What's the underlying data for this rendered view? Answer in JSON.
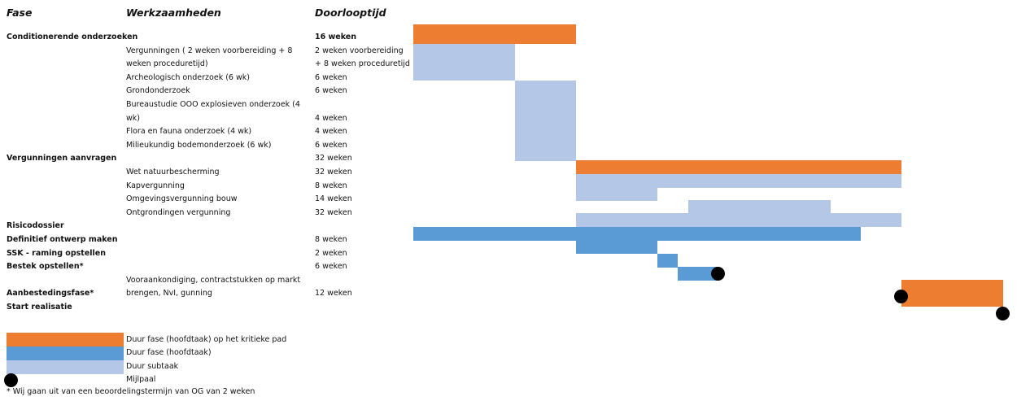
{
  "headers": {
    "phase": "Fase",
    "tasks": "Werkzaamheden",
    "duration": "Doorlooptijd"
  },
  "rows": [
    {
      "phase": "Conditionerende onderzoeken",
      "task": "",
      "duration": "16 weken"
    },
    {
      "phase": "",
      "task": "Vergunningen ( 2 weken voorbereiding + 8",
      "duration": "2 weken voorbereiding"
    },
    {
      "phase": "",
      "task": "weken proceduretijd)",
      "duration": "+ 8 weken proceduretijd"
    },
    {
      "phase": "",
      "task": "Archeologisch onderzoek (6 wk)",
      "duration": "6 weken"
    },
    {
      "phase": "",
      "task": "Grondonderzoek",
      "duration": "6 weken"
    },
    {
      "phase": "",
      "task": "Bureaustudie OOO explosieven onderzoek (4",
      "duration": ""
    },
    {
      "phase": "",
      "task": "wk)",
      "duration": "4 weken"
    },
    {
      "phase": "",
      "task": "Flora en fauna onderzoek (4 wk)",
      "duration": "4 weken"
    },
    {
      "phase": "",
      "task": "Milieukundig bodemonderzoek (6 wk)",
      "duration": "6 weken"
    },
    {
      "phase": "Vergunningen aanvragen",
      "task": "",
      "duration": "32 weken"
    },
    {
      "phase": "",
      "task": "Wet natuurbescherming",
      "duration": "32 weken"
    },
    {
      "phase": "",
      "task": "Kapvergunning",
      "duration": "8 weken"
    },
    {
      "phase": "",
      "task": "Omgevingsvergunning bouw",
      "duration": "14 weken"
    },
    {
      "phase": "",
      "task": "Ontgrondingen vergunning",
      "duration": "32 weken"
    },
    {
      "phase": "Risicodossier",
      "task": "",
      "duration": ""
    },
    {
      "phase": "Definitief ontwerp maken",
      "task": "",
      "duration": "8 weken"
    },
    {
      "phase": "SSK - raming opstellen",
      "task": "",
      "duration": "2 weken"
    },
    {
      "phase": "Bestek opstellen*",
      "task": "",
      "duration": "6 weken"
    },
    {
      "phase": "",
      "task": "Vooraankondiging, contractstukken op markt",
      "duration": ""
    },
    {
      "phase": "Aanbestedingsfase*",
      "task": "brengen, NvI, gunning",
      "duration": "12 weken"
    },
    {
      "phase": "Start realisatie",
      "task": "",
      "duration": ""
    }
  ],
  "legend": {
    "critical": "Duur fase (hoofdtaak) op het kritieke pad",
    "phase": "Duur fase (hoofdtaak)",
    "subtask": "Duur subtaak",
    "milestone": "Mijlpaal"
  },
  "footnote": "* Wij gaan uit van een beoordelingstermijn van OG van 2 weken",
  "colors": {
    "critical": "#ed7d31",
    "phase": "#5b9bd5",
    "subtask": "#b4c7e7",
    "milestone": "#000000"
  },
  "chart_data": {
    "type": "gantt",
    "unit": "weeks",
    "tasks": [
      {
        "name": "Conditionerende onderzoeken",
        "kind": "critical",
        "start": 0,
        "end": 16
      },
      {
        "name": "Vergunningen",
        "kind": "subtask",
        "start": 0,
        "end": 10
      },
      {
        "name": "Archeologisch onderzoek / Grondonderzoek / Bureaustudie / Flora en fauna / Milieukundig bodemonderzoek",
        "kind": "subtask",
        "start": 10,
        "end": 16
      },
      {
        "name": "Vergunningen aanvragen",
        "kind": "critical",
        "start": 16,
        "end": 48
      },
      {
        "name": "Wet natuurbescherming",
        "kind": "subtask",
        "start": 16,
        "end": 48
      },
      {
        "name": "Kapvergunning",
        "kind": "subtask",
        "start": 16,
        "end": 24
      },
      {
        "name": "Omgevingsvergunning bouw",
        "kind": "subtask",
        "start": 27,
        "end": 41
      },
      {
        "name": "Ontgrondingen vergunning",
        "kind": "subtask",
        "start": 16,
        "end": 48
      },
      {
        "name": "Risicodossier",
        "kind": "phase",
        "start": 0,
        "end": 44
      },
      {
        "name": "Definitief ontwerp maken",
        "kind": "phase",
        "start": 16,
        "end": 24
      },
      {
        "name": "SSK - raming opstellen",
        "kind": "phase",
        "start": 24,
        "end": 26
      },
      {
        "name": "Bestek opstellen*",
        "kind": "phase",
        "start": 26,
        "end": 30
      },
      {
        "name": "Aanbestedingsfase*",
        "kind": "critical",
        "start": 48,
        "end": 58
      },
      {
        "name": "Milestone after Bestek",
        "kind": "milestone",
        "at": 30
      },
      {
        "name": "Milestone start Aanbesteding",
        "kind": "milestone",
        "at": 48
      },
      {
        "name": "Start realisatie",
        "kind": "milestone",
        "at": 58
      }
    ]
  }
}
